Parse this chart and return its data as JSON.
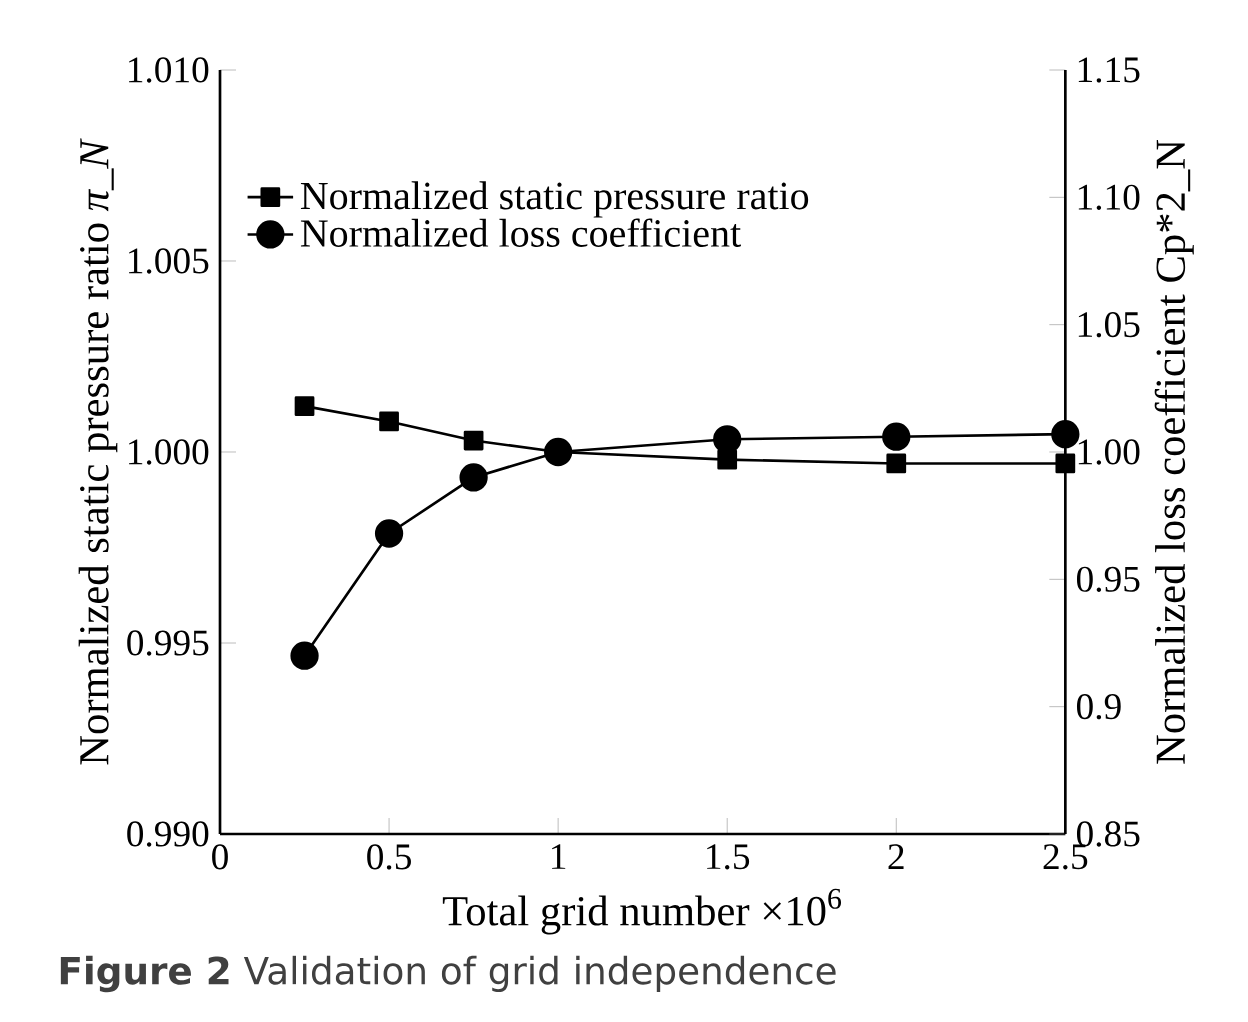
{
  "chart_data": {
    "type": "line",
    "xlabel": "Total grid number ×10$^{6}$",
    "ylabel": "Normalized static pressure ratio *π_N*",
    "y2label": "Normalized loss coefficient Cp*2_N",
    "annotations": [
      "**Figure 2**  Validation of grid independence"
    ],
    "x": [
      0.25,
      0.5,
      0.75,
      1,
      1.5,
      2,
      2.5
    ],
    "series": [
      {
        "name": "Normalized static pressure ratio",
        "color": "#000000",
        "marker": "square",
        "values": [
          1.0012,
          1.0008,
          1.0003,
          1.0,
          0.9998,
          0.9997,
          0.9997
        ]
      },
      {
        "name": "Normalized loss coefficient",
        "color": "#000000",
        "marker": "circle",
        "axis": "y2",
        "values": [
          0.92,
          0.968,
          0.99,
          1.0,
          1.005,
          1.006,
          1.007
        ]
      }
    ],
    "xlim": [
      0,
      2.5
    ],
    "xticks": [
      0,
      0.5,
      1,
      1.5,
      2,
      2.5
    ],
    "ylim": [
      0.99,
      1.01
    ],
    "yticks": [
      {
        "value": 0.99,
        "label": "0.990"
      },
      {
        "value": 0.995,
        "label": "0.995"
      },
      {
        "value": 1.0,
        "label": "1.000"
      },
      {
        "value": 1.005,
        "label": "1.005"
      },
      {
        "value": 1.01,
        "label": "1.010"
      }
    ],
    "y2lim": [
      0.85,
      1.15
    ],
    "y2ticks": [
      0.85,
      0.9,
      {
        "value": 0.95,
        "label": "0.95"
      },
      {
        "value": 1.0,
        "label": "1.00"
      },
      1.05,
      {
        "value": 1.1,
        "label": "1.10"
      },
      1.15
    ],
    "legend": "top left",
    "grid": false,
    "line_style": "solid"
  }
}
